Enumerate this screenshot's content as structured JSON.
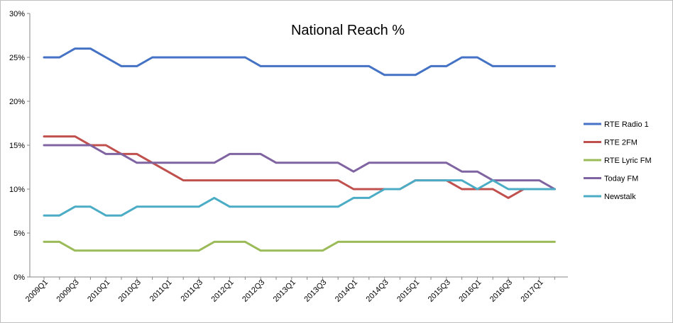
{
  "chart_data": {
    "type": "line",
    "title": "National Reach %",
    "xlabel": "",
    "ylabel": "",
    "ylim": [
      0,
      30
    ],
    "y_ticks": [
      "0%",
      "5%",
      "10%",
      "15%",
      "20%",
      "25%",
      "30%"
    ],
    "y_tick_values": [
      0,
      5,
      10,
      15,
      20,
      25,
      30
    ],
    "x_tick_labels": [
      "2009Q1",
      "2009Q3",
      "2010Q1",
      "2010Q3",
      "2011Q1",
      "2011Q3",
      "2012Q1",
      "2012Q3",
      "2013Q1",
      "2013Q3",
      "2014Q1",
      "2014Q3",
      "2015Q1",
      "2015Q3",
      "2016Q1",
      "2016Q3",
      "2017Q1"
    ],
    "categories": [
      "2009Q1",
      "2009Q2",
      "2009Q3",
      "2009Q4",
      "2010Q1",
      "2010Q2",
      "2010Q3",
      "2010Q4",
      "2011Q1",
      "2011Q2",
      "2011Q3",
      "2011Q4",
      "2012Q1",
      "2012Q2",
      "2012Q3",
      "2012Q4",
      "2013Q1",
      "2013Q2",
      "2013Q3",
      "2013Q4",
      "2014Q1",
      "2014Q2",
      "2014Q3",
      "2014Q4",
      "2015Q1",
      "2015Q2",
      "2015Q3",
      "2015Q4",
      "2016Q1",
      "2016Q2",
      "2016Q3",
      "2016Q4",
      "2017Q1",
      "2017Q2"
    ],
    "grid": false,
    "legend_position": "right",
    "series": [
      {
        "name": "RTE Radio  1",
        "color": "#4472C4",
        "values": [
          25,
          25,
          26,
          26,
          25,
          24,
          24,
          25,
          25,
          25,
          25,
          25,
          25,
          25,
          24,
          24,
          24,
          24,
          24,
          24,
          24,
          24,
          23,
          23,
          23,
          24,
          24,
          25,
          25,
          24,
          24,
          24,
          24,
          24
        ]
      },
      {
        "name": "RTE 2FM",
        "color": "#C0504D",
        "values": [
          16,
          16,
          16,
          15,
          15,
          14,
          14,
          13,
          12,
          11,
          11,
          11,
          11,
          11,
          11,
          11,
          11,
          11,
          11,
          11,
          10,
          10,
          10,
          10,
          11,
          11,
          11,
          10,
          10,
          10,
          9,
          10,
          10,
          10
        ]
      },
      {
        "name": "RTE Lyric FM",
        "color": "#9BBB59",
        "values": [
          4,
          4,
          3,
          3,
          3,
          3,
          3,
          3,
          3,
          3,
          3,
          4,
          4,
          4,
          3,
          3,
          3,
          3,
          3,
          4,
          4,
          4,
          4,
          4,
          4,
          4,
          4,
          4,
          4,
          4,
          4,
          4,
          4,
          4
        ]
      },
      {
        "name": "Today FM",
        "color": "#8064A2",
        "values": [
          15,
          15,
          15,
          15,
          14,
          14,
          13,
          13,
          13,
          13,
          13,
          13,
          14,
          14,
          14,
          13,
          13,
          13,
          13,
          13,
          12,
          13,
          13,
          13,
          13,
          13,
          13,
          12,
          12,
          11,
          11,
          11,
          11,
          10
        ]
      },
      {
        "name": "Newstalk",
        "color": "#4BACC6",
        "values": [
          7,
          7,
          8,
          8,
          7,
          7,
          8,
          8,
          8,
          8,
          8,
          9,
          8,
          8,
          8,
          8,
          8,
          8,
          8,
          8,
          9,
          9,
          10,
          10,
          11,
          11,
          11,
          11,
          10,
          11,
          10,
          10,
          10,
          10
        ]
      }
    ]
  }
}
